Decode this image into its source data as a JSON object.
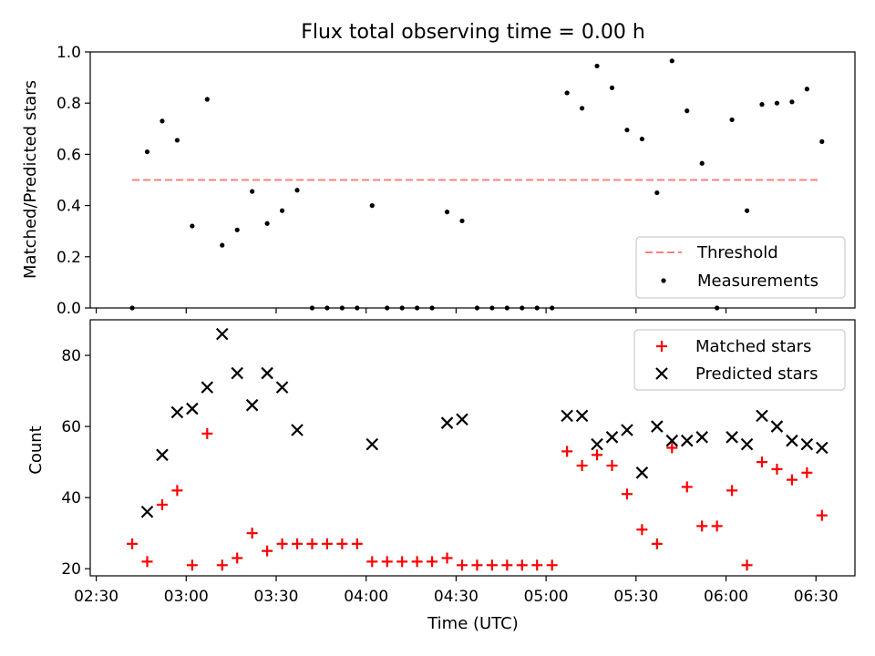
{
  "chart_data": [
    {
      "type": "scatter",
      "title": "Flux total observing time = 0.00 h",
      "xlabel": "",
      "ylabel": "Matched/Predicted stars",
      "xlim": [
        "02:28",
        "06:43"
      ],
      "ylim": [
        0,
        1.0
      ],
      "yticks": [
        0.0,
        0.2,
        0.4,
        0.6,
        0.8,
        1.0
      ],
      "ytick_labels": [
        "0.0",
        "0.2",
        "0.4",
        "0.6",
        "0.8",
        "1.0"
      ],
      "grid": false,
      "legend": "bottom-right",
      "series": [
        {
          "name": "Threshold",
          "kind": "dashed-line",
          "color": "#ff8080",
          "x": [
            "02:42",
            "06:31"
          ],
          "y": [
            0.5,
            0.5
          ]
        },
        {
          "name": "Measurements",
          "kind": "dot",
          "color": "#000000",
          "x": [
            "02:42",
            "02:47",
            "02:52",
            "02:57",
            "03:02",
            "03:07",
            "03:12",
            "03:17",
            "03:22",
            "03:27",
            "03:32",
            "03:37",
            "03:42",
            "03:47",
            "03:52",
            "03:57",
            "04:02",
            "04:07",
            "04:12",
            "04:17",
            "04:22",
            "04:27",
            "04:32",
            "04:37",
            "04:42",
            "04:47",
            "04:52",
            "04:57",
            "05:02",
            "05:07",
            "05:12",
            "05:17",
            "05:22",
            "05:27",
            "05:32",
            "05:37",
            "05:42",
            "05:47",
            "05:52",
            "05:57",
            "06:02",
            "06:07",
            "06:12",
            "06:17",
            "06:22",
            "06:27",
            "06:32"
          ],
          "y": [
            0.0,
            0.61,
            0.73,
            0.655,
            0.32,
            0.815,
            0.245,
            0.305,
            0.455,
            0.33,
            0.38,
            0.46,
            0.0,
            0.0,
            0.0,
            0.0,
            0.4,
            0.0,
            0.0,
            0.0,
            0.0,
            0.375,
            0.34,
            0.0,
            0.0,
            0.0,
            0.0,
            0.0,
            0.0,
            0.84,
            0.78,
            0.945,
            0.86,
            0.695,
            0.66,
            0.45,
            0.965,
            0.77,
            0.565,
            0.0,
            0.735,
            0.38,
            0.795,
            0.8,
            0.805,
            0.855,
            0.65
          ]
        }
      ]
    },
    {
      "type": "scatter",
      "title": "",
      "xlabel": "Time (UTC)",
      "ylabel": "Count",
      "xlim": [
        "02:28",
        "06:43"
      ],
      "ylim": [
        18,
        90
      ],
      "xticks": [
        "02:30",
        "03:00",
        "03:30",
        "04:00",
        "04:30",
        "05:00",
        "05:30",
        "06:00",
        "06:30"
      ],
      "yticks": [
        20,
        40,
        60,
        80
      ],
      "ytick_labels": [
        "20",
        "40",
        "60",
        "80"
      ],
      "grid": false,
      "legend": "top-right",
      "series": [
        {
          "name": "Matched stars",
          "marker": "plus",
          "color": "#ff0000",
          "x": [
            "02:42",
            "02:47",
            "02:52",
            "02:57",
            "03:02",
            "03:07",
            "03:12",
            "03:17",
            "03:22",
            "03:27",
            "03:32",
            "03:37",
            "03:42",
            "03:47",
            "03:52",
            "03:57",
            "04:02",
            "04:07",
            "04:12",
            "04:17",
            "04:22",
            "04:27",
            "04:32",
            "04:37",
            "04:42",
            "04:47",
            "04:52",
            "04:57",
            "05:02",
            "05:07",
            "05:12",
            "05:17",
            "05:22",
            "05:27",
            "05:32",
            "05:37",
            "05:42",
            "05:47",
            "05:52",
            "05:57",
            "06:02",
            "06:07",
            "06:12",
            "06:17",
            "06:22",
            "06:27",
            "06:32"
          ],
          "y": [
            27,
            22,
            38,
            42,
            21,
            58,
            21,
            23,
            30,
            25,
            27,
            27,
            27,
            27,
            27,
            27,
            22,
            22,
            22,
            22,
            22,
            23,
            21,
            21,
            21,
            21,
            21,
            21,
            21,
            53,
            49,
            52,
            49,
            41,
            31,
            27,
            54,
            43,
            32,
            32,
            42,
            21,
            50,
            48,
            45,
            47,
            35
          ]
        },
        {
          "name": "Predicted stars",
          "marker": "x",
          "color": "#000000",
          "x": [
            "02:47",
            "02:52",
            "02:57",
            "03:02",
            "03:07",
            "03:12",
            "03:17",
            "03:22",
            "03:27",
            "03:32",
            "03:37",
            "04:02",
            "04:27",
            "04:32",
            "05:07",
            "05:12",
            "05:17",
            "05:22",
            "05:27",
            "05:32",
            "05:37",
            "05:42",
            "05:47",
            "05:52",
            "06:02",
            "06:07",
            "06:12",
            "06:17",
            "06:22",
            "06:27",
            "06:32"
          ],
          "y": [
            36,
            52,
            64,
            65,
            71,
            86,
            75,
            66,
            75,
            71,
            59,
            55,
            61,
            62,
            63,
            63,
            55,
            57,
            59,
            47,
            60,
            56,
            56,
            57,
            57,
            55,
            63,
            60,
            56,
            55,
            54
          ]
        }
      ]
    }
  ]
}
